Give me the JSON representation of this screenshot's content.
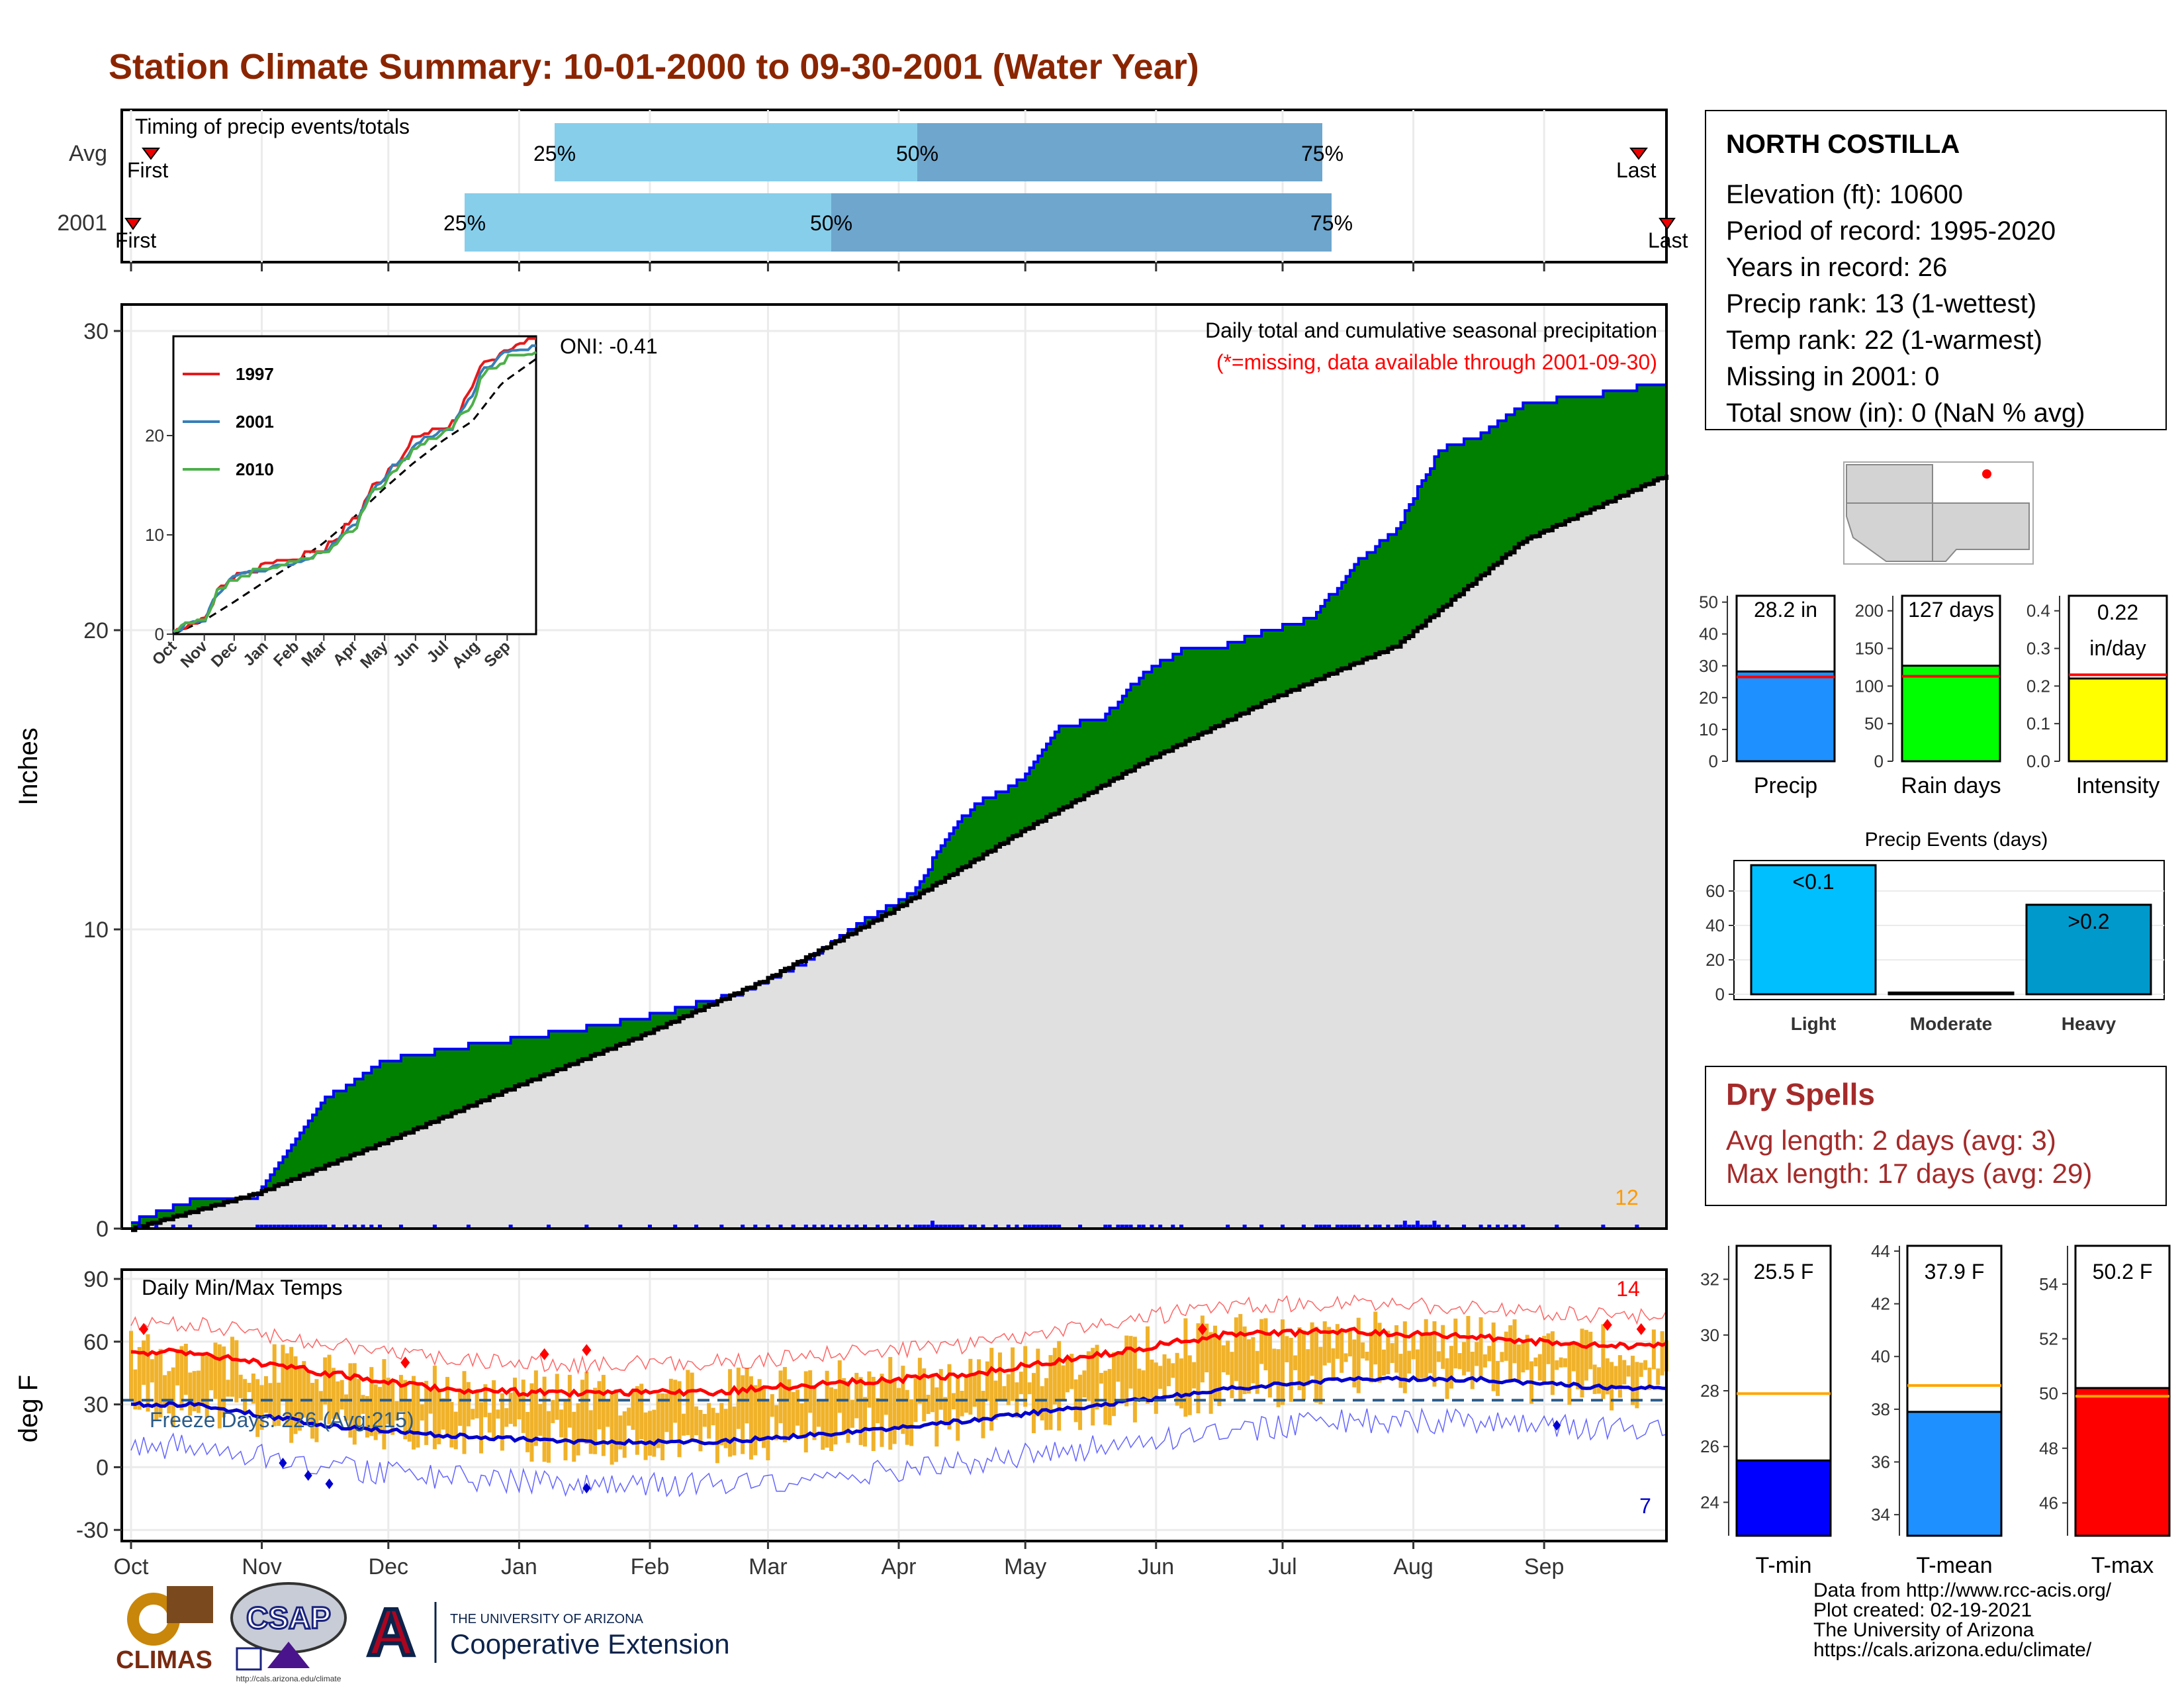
{
  "title": "Station Climate Summary: 10-01-2000 to 09-30-2001 (Water Year)",
  "colors": {
    "title": "#8b2500",
    "q1": "#87ceeb",
    "q2": "#6ea6cd",
    "cum_fill": "#008000",
    "avg_fill": "#e0e0e0",
    "daily_bar": "#0000ff",
    "temp_bar": "#f0b22a",
    "max_line": "#ff0000",
    "min_line": "#0000cc",
    "dry": "#a52a2a"
  },
  "timing": {
    "title": "Timing of precip events/totals",
    "rows": [
      {
        "label": "Avg",
        "first_label": "First",
        "last_label": "Last",
        "p25_label": "25%",
        "p50_label": "50%",
        "p75_label": "75%"
      },
      {
        "label": "2001",
        "first_label": "First",
        "last_label": "Last",
        "p25_label": "25%",
        "p50_label": "50%",
        "p75_label": "75%"
      }
    ]
  },
  "station": {
    "name": "NORTH COSTILLA",
    "lines": [
      "Elevation (ft): 10600",
      "Period of record: 1995-2020",
      "Years in record: 26",
      "Precip rank: 13 (1-wettest)",
      "Temp rank: 22 (1-warmest)",
      "Missing in 2001: 0",
      "Total snow (in): 0 (NaN % avg)"
    ]
  },
  "main_chart": {
    "ylabel": "Inches",
    "note_title": "Daily total and cumulative seasonal precipitation",
    "note_missing": "(*=missing, data available through 2001-09-30)",
    "oni": "ONI: -0.41",
    "count_label": "12",
    "yticks": [
      "0",
      "10",
      "20",
      "30"
    ]
  },
  "months": [
    "Oct",
    "Nov",
    "Dec",
    "Jan",
    "Feb",
    "Mar",
    "Apr",
    "May",
    "Jun",
    "Jul",
    "Aug",
    "Sep"
  ],
  "inset": {
    "yticks": [
      "0",
      "10",
      "20"
    ],
    "months": [
      "Oct",
      "Nov",
      "Dec",
      "Jan",
      "Feb",
      "Mar",
      "Apr",
      "May",
      "Jun",
      "Jul",
      "Aug",
      "Sep"
    ],
    "legend": [
      "1997",
      "2001",
      "2010"
    ],
    "legend_colors": [
      "#e41a1c",
      "#377eb8",
      "#4daf4a"
    ]
  },
  "temp_chart": {
    "ylabel": "deg F",
    "title": "Daily Min/Max Temps",
    "freeze_label": "Freeze Days: 226 (Avg:215)",
    "max_count": "14",
    "min_count": "7",
    "yticks": [
      "-30",
      "0",
      "30",
      "60",
      "90"
    ]
  },
  "summary_bars": [
    {
      "label": "Precip",
      "value_label": "28.2 in",
      "value": 28.2,
      "avg": 26.5,
      "ymax": 52,
      "yticks": [
        "0",
        "10",
        "20",
        "30",
        "40",
        "50"
      ],
      "color": "#1e90ff"
    },
    {
      "label": "Rain days",
      "value_label": "127 days",
      "value": 127,
      "avg": 113,
      "ymax": 220,
      "yticks": [
        "0",
        "50",
        "100",
        "150",
        "200"
      ],
      "color": "#00ff00"
    },
    {
      "label": "Intensity",
      "value_label_1": "0.22",
      "value_label_2": "in/day",
      "value": 0.22,
      "avg": 0.23,
      "ymax": 0.44,
      "yticks": [
        "0.0",
        "0.1",
        "0.2",
        "0.3",
        "0.4"
      ],
      "color": "#ffff00"
    }
  ],
  "events": {
    "title": "Precip Events (days)",
    "categories": [
      "Light",
      "Moderate",
      "Heavy"
    ],
    "bar_labels": [
      "<0.1",
      "",
      ">0.2"
    ],
    "values": [
      75,
      1,
      52
    ],
    "yticks": [
      "0",
      "20",
      "40",
      "60"
    ],
    "colors": [
      "#00bfff",
      "#555555",
      "#0099cc"
    ]
  },
  "dry_spells": {
    "title": "Dry Spells",
    "avg_line": "Avg length: 2 days (avg: 3)",
    "max_line": "Max length: 17 days (avg: 29)"
  },
  "temp_bars": [
    {
      "label": "T-min",
      "value_label": "25.5 F",
      "value": 25.5,
      "avg": 27.9,
      "ymin": 22.8,
      "ymax": 33.2,
      "yticks": [
        "24",
        "26",
        "28",
        "30",
        "32"
      ],
      "color": "#0000ff"
    },
    {
      "label": "T-mean",
      "value_label": "37.9 F",
      "value": 37.9,
      "avg": 38.9,
      "ymin": 33.2,
      "ymax": 44.2,
      "yticks": [
        "34",
        "36",
        "38",
        "40",
        "42",
        "44"
      ],
      "color": "#1e90ff"
    },
    {
      "label": "T-max",
      "value_label": "50.2 F",
      "value": 50.2,
      "avg": 49.9,
      "ymin": 44.8,
      "ymax": 55.4,
      "yticks": [
        "46",
        "48",
        "50",
        "52",
        "54"
      ],
      "color": "#ff0000"
    }
  ],
  "credits": [
    "Data from http://www.rcc-acis.org/",
    "Plot created: 02-19-2021",
    "The University of Arizona",
    "https://cals.arizona.edu/climate/"
  ],
  "logos": {
    "climas": "CLIMAS",
    "csap": "CSAP",
    "csap_url": "http://cals.arizona.edu/climate",
    "ua_line1": "THE UNIVERSITY OF ARIZONA",
    "ua_line2": "Cooperative Extension",
    "ua_letter": "A"
  },
  "chart_data": [
    {
      "type": "area",
      "title": "Daily total and cumulative seasonal precipitation",
      "ylabel": "Inches",
      "ylim": [
        0,
        31
      ],
      "x_unit": "day of water year",
      "series": [
        {
          "name": "2001",
          "x": [
            0,
            15,
            30,
            45,
            48,
            60,
            75,
            80,
            90,
            120,
            145,
            160,
            170,
            185,
            195,
            200,
            210,
            220,
            230,
            240,
            250,
            260,
            270,
            280,
            290,
            300,
            310,
            320,
            330,
            345,
            360,
            364
          ],
          "values": [
            0.2,
            1.0,
            1.1,
            4.2,
            4.5,
            5.6,
            6.0,
            6.1,
            6.3,
            7.0,
            7.9,
            8.9,
            10.0,
            11.2,
            13.4,
            14.2,
            14.9,
            16.8,
            17.0,
            18.6,
            19.4,
            19.5,
            20.0,
            20.4,
            22.2,
            23.4,
            26.0,
            26.5,
            27.6,
            27.8,
            28.2,
            28.2
          ]
        },
        {
          "name": "average",
          "x": [
            0,
            30,
            60,
            90,
            120,
            150,
            180,
            210,
            240,
            270,
            300,
            330,
            364
          ],
          "values": [
            0.0,
            1.2,
            2.9,
            4.7,
            6.4,
            8.3,
            10.6,
            13.2,
            15.6,
            17.7,
            19.5,
            23.0,
            25.2
          ]
        }
      ]
    },
    {
      "type": "line",
      "ylabel": "deg F",
      "ylim": [
        -30,
        95
      ],
      "x": [
        "Oct",
        "Nov",
        "Dec",
        "Jan",
        "Feb",
        "Mar",
        "Apr",
        "May",
        "Jun",
        "Jul",
        "Aug",
        "Sep"
      ],
      "series": [
        {
          "name": "avg max",
          "values": [
            55,
            45,
            37,
            35,
            36,
            40,
            44,
            53,
            63,
            65,
            62,
            58
          ]
        },
        {
          "name": "avg min",
          "values": [
            30,
            20,
            15,
            12,
            12,
            16,
            22,
            29,
            37,
            42,
            42,
            38
          ]
        }
      ]
    }
  ]
}
